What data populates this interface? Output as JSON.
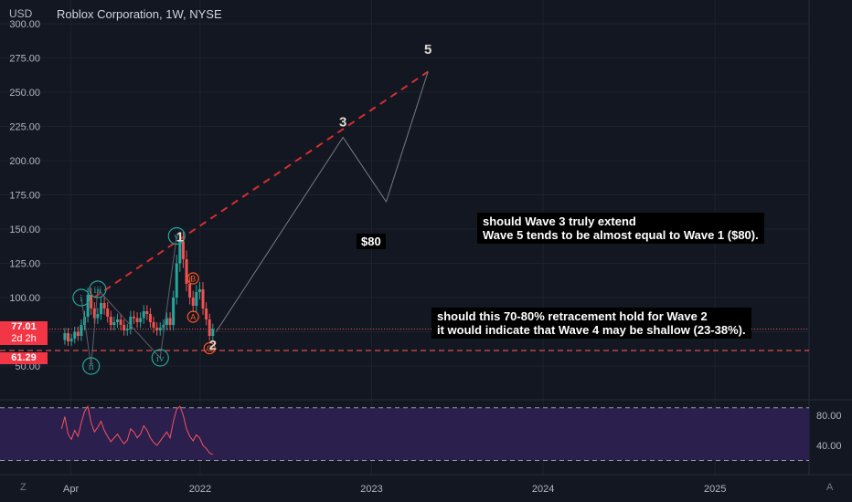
{
  "header": {
    "currency": "USD",
    "symbol_title": "Roblox Corporation, 1W, NYSE"
  },
  "price_tags": {
    "last_price": "77.01",
    "countdown": "2d 2h",
    "low_level": "61.29"
  },
  "annotations": {
    "wave1_size": "$80",
    "note_wave3_line1": "should Wave 3 truly extend",
    "note_wave3_line2": "Wave 5 tends to be almost equal to Wave 1 ($80).",
    "note_wave2_line1": "should this 70-80% retracement hold for Wave 2",
    "note_wave2_line2": "it would indicate that Wave 4 may be shallow (23-38%).",
    "wave_labels": [
      "1",
      "2",
      "3",
      "5"
    ],
    "sub_wave_labels": [
      "i",
      "ii",
      "iii",
      "iv",
      "v"
    ],
    "abc_labels": [
      "A",
      "B",
      "C"
    ]
  },
  "bottom_bar": {
    "left": "Z",
    "right": "A"
  },
  "colors": {
    "background": "#131722",
    "up_candle": "#26a69a",
    "down_candle": "#ef5350",
    "dashed_target": "#d32f2f",
    "rsi_band": "#2a1f4d",
    "price_tag": "#f23645",
    "subwave_circle": "#26a69a",
    "abc_circle": "#ff5722"
  },
  "chart_data": [
    {
      "type": "candlestick",
      "title": "Roblox Corporation, 1W, NYSE",
      "ylabel": "USD",
      "ylim": [
        35,
        300
      ],
      "y_ticks": [
        "50.00",
        "75.00",
        "100.00",
        "125.00",
        "150.00",
        "175.00",
        "200.00",
        "225.00",
        "250.00",
        "275.00",
        "300.00"
      ],
      "x_ticks": [
        "Apr",
        "2022",
        "2023",
        "2024",
        "2025"
      ],
      "x_tick_dates": [
        "2021-04-01",
        "2022-01-01",
        "2023-01-01",
        "2024-01-01",
        "2025-01-01"
      ],
      "xlim": [
        "2020-11-01",
        "2025-07-20"
      ],
      "series_close_path": [
        [
          "2021-03-12",
          69
        ],
        [
          "2021-03-19",
          74
        ],
        [
          "2021-03-26",
          68
        ],
        [
          "2021-04-02",
          70
        ],
        [
          "2021-04-09",
          75
        ],
        [
          "2021-04-16",
          72
        ],
        [
          "2021-04-23",
          80
        ],
        [
          "2021-04-30",
          86
        ],
        [
          "2021-05-07",
          102
        ],
        [
          "2021-05-14",
          92
        ],
        [
          "2021-05-21",
          85
        ],
        [
          "2021-05-28",
          88
        ],
        [
          "2021-06-04",
          96
        ],
        [
          "2021-06-11",
          92
        ],
        [
          "2021-06-18",
          86
        ],
        [
          "2021-06-25",
          80
        ],
        [
          "2021-07-02",
          82
        ],
        [
          "2021-07-09",
          84
        ],
        [
          "2021-07-16",
          80
        ],
        [
          "2021-07-23",
          76
        ],
        [
          "2021-07-30",
          77
        ],
        [
          "2021-08-06",
          86
        ],
        [
          "2021-08-13",
          85
        ],
        [
          "2021-08-20",
          82
        ],
        [
          "2021-08-27",
          85
        ],
        [
          "2021-09-03",
          90
        ],
        [
          "2021-09-10",
          88
        ],
        [
          "2021-09-17",
          82
        ],
        [
          "2021-09-24",
          78
        ],
        [
          "2021-10-01",
          76
        ],
        [
          "2021-10-08",
          78
        ],
        [
          "2021-10-15",
          80
        ],
        [
          "2021-10-22",
          85
        ],
        [
          "2021-10-29",
          80
        ],
        [
          "2021-11-05",
          100
        ],
        [
          "2021-11-12",
          125
        ],
        [
          "2021-11-19",
          141
        ],
        [
          "2021-11-26",
          128
        ],
        [
          "2021-12-03",
          110
        ],
        [
          "2021-12-10",
          100
        ],
        [
          "2021-12-17",
          94
        ],
        [
          "2021-12-24",
          104
        ],
        [
          "2021-12-31",
          106
        ],
        [
          "2022-01-07",
          92
        ],
        [
          "2022-01-14",
          84
        ],
        [
          "2022-01-21",
          72
        ],
        [
          "2022-01-28",
          77
        ]
      ],
      "projection": [
        [
          "2022-02-04",
          75
        ],
        [
          "2022-11-01",
          217
        ],
        [
          "2023-02-01",
          170
        ],
        [
          "2023-05-01",
          265
        ]
      ],
      "dashed_target_line": [
        [
          "2021-05-20",
          100
        ],
        [
          "2023-05-01",
          265
        ]
      ],
      "horizontal_levels": [
        77.01,
        61.29
      ],
      "wave_marks": {
        "1": [
          "2021-11-19",
          141
        ],
        "2": [
          "2022-01-28",
          62
        ],
        "3": [
          "2022-11-01",
          225
        ],
        "5": [
          "2023-05-01",
          278
        ],
        "i": [
          "2021-04-23",
          100
        ],
        "ii": [
          "2021-05-14",
          50
        ],
        "iii": [
          "2021-05-28",
          106
        ],
        "iv": [
          "2021-10-08",
          56
        ],
        "v": [
          "2021-11-12",
          145
        ],
        "A": [
          "2021-12-17",
          86
        ],
        "B": [
          "2021-12-17",
          114
        ],
        "C": [
          "2022-01-21",
          63
        ]
      }
    },
    {
      "type": "line",
      "title": "RSI",
      "ylim": [
        20,
        100
      ],
      "y_ticks": [
        "40.00",
        "80.00"
      ],
      "band": [
        30,
        70
      ],
      "band_lines": [
        20,
        90
      ],
      "values": [
        [
          "2021-03-12",
          62
        ],
        [
          "2021-03-19",
          78
        ],
        [
          "2021-03-26",
          55
        ],
        [
          "2021-04-02",
          48
        ],
        [
          "2021-04-09",
          60
        ],
        [
          "2021-04-16",
          52
        ],
        [
          "2021-04-23",
          70
        ],
        [
          "2021-04-30",
          85
        ],
        [
          "2021-05-07",
          92
        ],
        [
          "2021-05-14",
          70
        ],
        [
          "2021-05-21",
          58
        ],
        [
          "2021-05-28",
          64
        ],
        [
          "2021-06-04",
          72
        ],
        [
          "2021-06-11",
          60
        ],
        [
          "2021-06-18",
          52
        ],
        [
          "2021-06-25",
          45
        ],
        [
          "2021-07-02",
          50
        ],
        [
          "2021-07-09",
          55
        ],
        [
          "2021-07-16",
          48
        ],
        [
          "2021-07-23",
          42
        ],
        [
          "2021-07-30",
          47
        ],
        [
          "2021-08-06",
          62
        ],
        [
          "2021-08-13",
          58
        ],
        [
          "2021-08-20",
          50
        ],
        [
          "2021-08-27",
          55
        ],
        [
          "2021-09-03",
          66
        ],
        [
          "2021-09-10",
          60
        ],
        [
          "2021-09-17",
          50
        ],
        [
          "2021-09-24",
          44
        ],
        [
          "2021-10-01",
          40
        ],
        [
          "2021-10-08",
          46
        ],
        [
          "2021-10-15",
          52
        ],
        [
          "2021-10-22",
          58
        ],
        [
          "2021-10-29",
          50
        ],
        [
          "2021-11-05",
          72
        ],
        [
          "2021-11-12",
          88
        ],
        [
          "2021-11-19",
          92
        ],
        [
          "2021-11-26",
          80
        ],
        [
          "2021-12-03",
          62
        ],
        [
          "2021-12-10",
          52
        ],
        [
          "2021-12-17",
          46
        ],
        [
          "2021-12-24",
          54
        ],
        [
          "2021-12-31",
          50
        ],
        [
          "2022-01-07",
          40
        ],
        [
          "2022-01-14",
          36
        ],
        [
          "2022-01-21",
          30
        ],
        [
          "2022-01-28",
          28
        ]
      ]
    }
  ]
}
